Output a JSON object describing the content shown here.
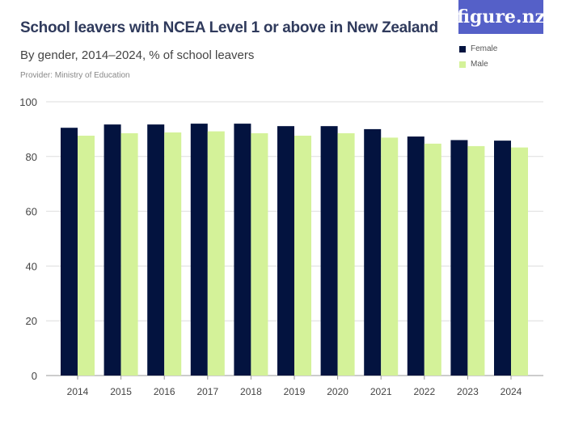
{
  "logo": "figure.nz",
  "chart_data": {
    "type": "bar",
    "title": "School leavers with NCEA Level 1 or above in New Zealand",
    "subtitle": "By gender, 2014–2024, % of school leavers",
    "provider": "Provider: Ministry of Education",
    "categories": [
      "2014",
      "2015",
      "2016",
      "2017",
      "2018",
      "2019",
      "2020",
      "2021",
      "2022",
      "2023",
      "2024"
    ],
    "series": [
      {
        "name": "Female",
        "color": "#03133f",
        "values": [
          90.5,
          91.7,
          91.7,
          92.0,
          92.0,
          91.1,
          91.1,
          90.0,
          87.3,
          86.0,
          85.8
        ]
      },
      {
        "name": "Male",
        "color": "#d4f299",
        "values": [
          87.6,
          88.5,
          88.8,
          89.2,
          88.5,
          87.6,
          88.5,
          86.9,
          84.7,
          83.8,
          83.3
        ]
      }
    ],
    "ylim": [
      0,
      100
    ],
    "yticks": [
      "0",
      "20",
      "40",
      "60",
      "80",
      "100"
    ],
    "grid": true,
    "legend": "top-right"
  }
}
